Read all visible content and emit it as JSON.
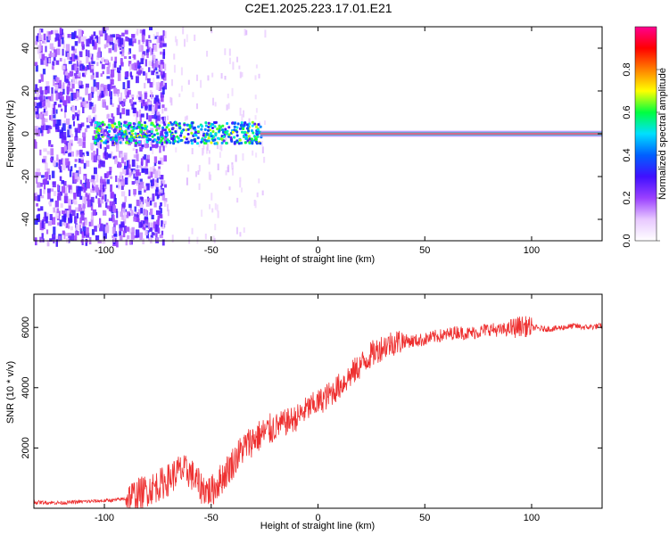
{
  "title": "C2E1.2025.223.17.01.E21",
  "chart_data": [
    {
      "type": "heatmap",
      "xlabel": "Height of straight line (km)",
      "ylabel": "Frequency (Hz)",
      "xlim": [
        -133,
        133
      ],
      "ylim": [
        -50,
        50
      ],
      "xticks": [
        -100,
        -50,
        0,
        50,
        100
      ],
      "yticks": [
        -40,
        -20,
        0,
        20,
        40
      ],
      "colorbar": {
        "label": "Normalized spectral amplitude",
        "range": [
          0,
          1
        ],
        "ticks": [
          0.0,
          0.2,
          0.4,
          0.6,
          0.8
        ],
        "colormap": [
          "#ffffff",
          "#e8c8ff",
          "#9a40ff",
          "#4010ff",
          "#0060ff",
          "#00e0ff",
          "#00ff40",
          "#ffff00",
          "#ff8000",
          "#ff0000",
          "#ff0090"
        ]
      },
      "features": {
        "noise_region_km": [
          -133,
          -80
        ],
        "sparse_region_km": [
          -80,
          -25
        ],
        "tone_frequency_hz": 0,
        "tone_start_km": -27
      }
    },
    {
      "type": "line",
      "xlabel": "Height of straight line (km)",
      "ylabel": "SNR (10 * v/v)",
      "xlim": [
        -133,
        133
      ],
      "ylim": [
        0,
        7100
      ],
      "xticks": [
        -100,
        -50,
        0,
        50,
        100
      ],
      "yticks": [
        2000,
        4000,
        6000
      ],
      "line_color": "#ee3030",
      "series": [
        {
          "x": [
            -133,
            -120,
            -110,
            -100,
            -95,
            -90,
            -85,
            -80,
            -75,
            -70,
            -65,
            -60,
            -55,
            -50,
            -45,
            -40,
            -35,
            -30,
            -25,
            -20,
            -15,
            -10,
            -5,
            0,
            5,
            10,
            15,
            20,
            25,
            30,
            35,
            40,
            45,
            50,
            55,
            60,
            65,
            70,
            75,
            80,
            85,
            90,
            95,
            100,
            105,
            110,
            115,
            120,
            125,
            133
          ],
          "values": [
            200,
            180,
            220,
            250,
            270,
            320,
            450,
            600,
            750,
            950,
            1250,
            1200,
            700,
            550,
            1000,
            1500,
            2000,
            2300,
            2500,
            2700,
            2850,
            3000,
            3300,
            3500,
            3750,
            4050,
            4400,
            4750,
            5100,
            5350,
            5500,
            5550,
            5550,
            5600,
            5700,
            5750,
            5850,
            5800,
            5850,
            5950,
            5900,
            5950,
            6050,
            6000,
            5950,
            5950,
            6000,
            6050,
            6000,
            6050
          ]
        }
      ]
    }
  ]
}
